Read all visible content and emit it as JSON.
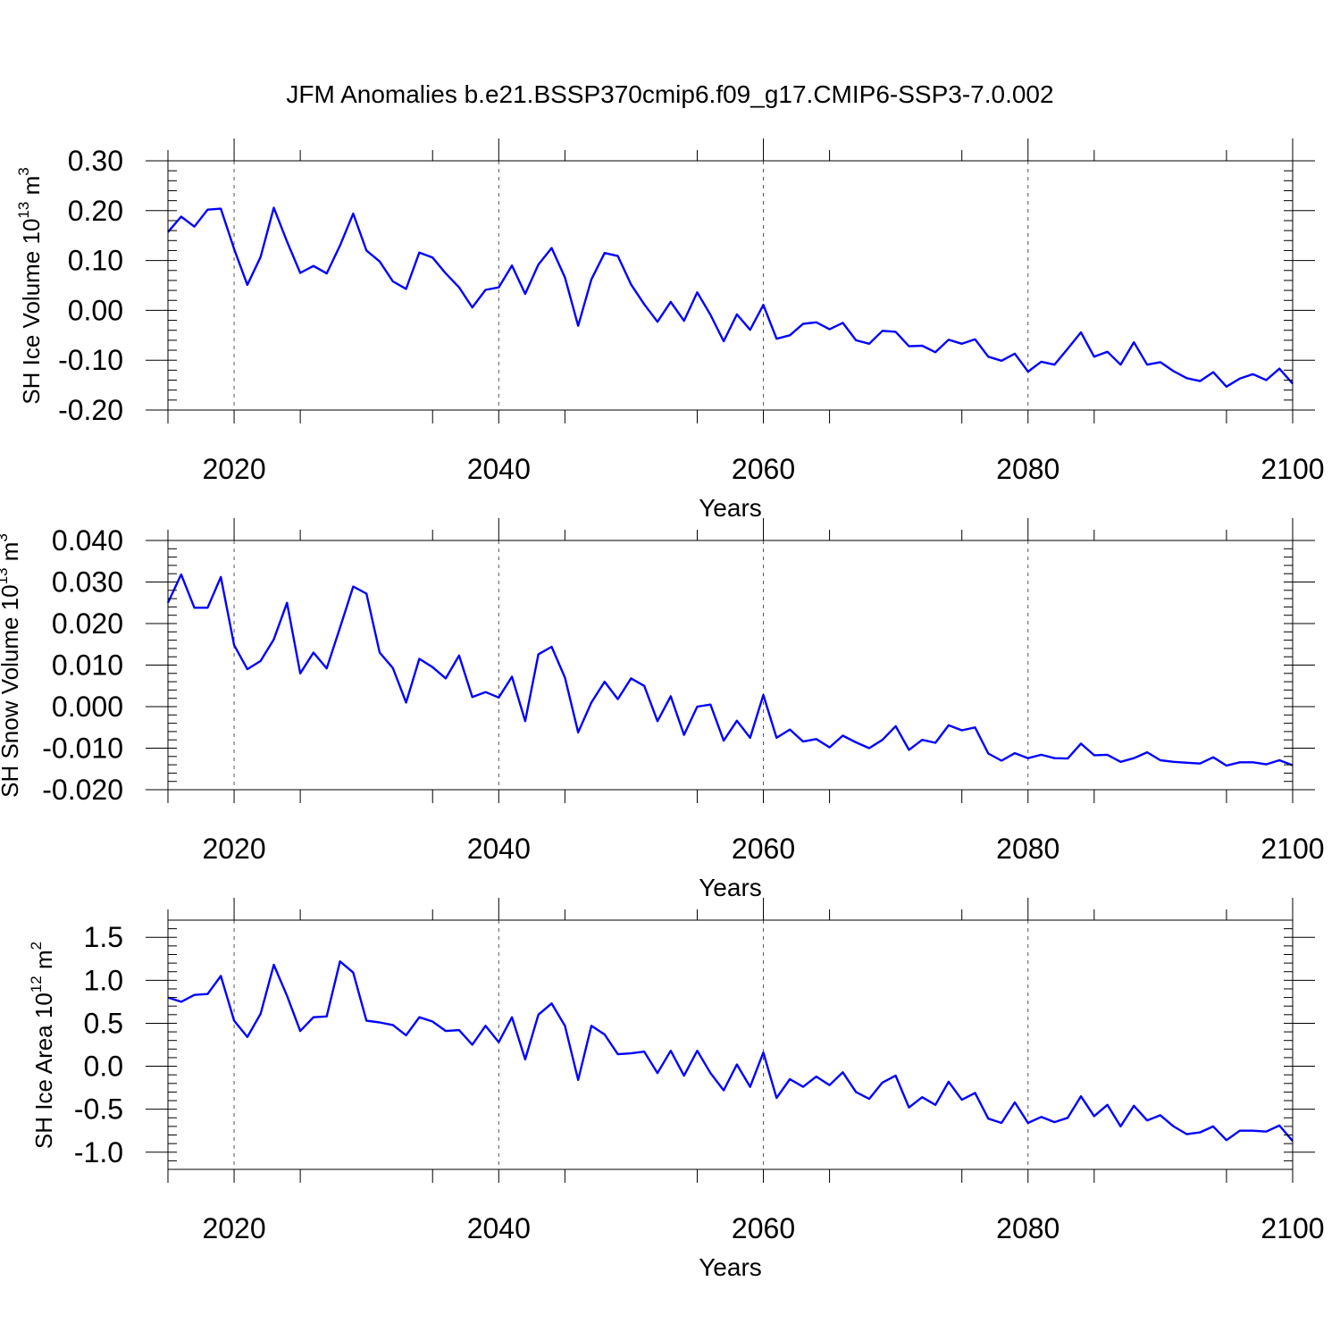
{
  "title": "JFM Anomalies b.e21.BSSP370cmip6.f09_g17.CMIP6-SSP3-7.0.002",
  "colors": {
    "line": "#0000ff",
    "axes": "#000000",
    "grid": "#555555"
  },
  "chart_data": [
    {
      "type": "line",
      "ylabel_main": "SH Ice Volume 10",
      "ylabel_exp1": "13",
      "ylabel_unit": " m",
      "ylabel_exp2": "3",
      "xlabel": "Years",
      "xlim": [
        2015,
        2100
      ],
      "ylim": [
        -0.2,
        0.3
      ],
      "x_ticks": [
        2020,
        2040,
        2060,
        2080,
        2100
      ],
      "x_tick_labels": [
        "2020",
        "2040",
        "2060",
        "2080",
        "2100"
      ],
      "y_ticks": [
        -0.2,
        -0.1,
        0.0,
        0.1,
        0.2,
        0.3
      ],
      "y_tick_labels": [
        "-0.20",
        "-0.10",
        "0.00",
        "0.10",
        "0.20",
        "0.30"
      ],
      "grid_x": [
        2020,
        2040,
        2060,
        2080
      ],
      "x": [
        2015,
        2016,
        2017,
        2018,
        2019,
        2020,
        2021,
        2022,
        2023,
        2024,
        2025,
        2026,
        2027,
        2028,
        2029,
        2030,
        2031,
        2032,
        2033,
        2034,
        2035,
        2036,
        2037,
        2038,
        2039,
        2040,
        2041,
        2042,
        2043,
        2044,
        2045,
        2046,
        2047,
        2048,
        2049,
        2050,
        2051,
        2052,
        2053,
        2054,
        2055,
        2056,
        2057,
        2058,
        2059,
        2060,
        2061,
        2062,
        2063,
        2064,
        2065,
        2066,
        2067,
        2068,
        2069,
        2070,
        2071,
        2072,
        2073,
        2074,
        2075,
        2076,
        2077,
        2078,
        2079,
        2080,
        2081,
        2082,
        2083,
        2084,
        2085,
        2086,
        2087,
        2088,
        2089,
        2090,
        2091,
        2092,
        2093,
        2094,
        2095,
        2096,
        2097,
        2098,
        2099,
        2100
      ],
      "series": [
        {
          "values": [
            0.157,
            0.188,
            0.168,
            0.202,
            0.204,
            0.123,
            0.051,
            0.107,
            0.206,
            0.138,
            0.075,
            0.089,
            0.074,
            0.13,
            0.194,
            0.12,
            0.098,
            0.058,
            0.043,
            0.116,
            0.106,
            0.074,
            0.046,
            0.006,
            0.041,
            0.046,
            0.09,
            0.033,
            0.092,
            0.125,
            0.066,
            -0.031,
            0.062,
            0.115,
            0.109,
            0.052,
            0.012,
            -0.023,
            0.017,
            -0.021,
            0.036,
            -0.009,
            -0.062,
            -0.008,
            -0.039,
            0.011,
            -0.057,
            -0.05,
            -0.027,
            -0.024,
            -0.038,
            -0.025,
            -0.06,
            -0.067,
            -0.041,
            -0.043,
            -0.072,
            -0.071,
            -0.084,
            -0.059,
            -0.067,
            -0.058,
            -0.093,
            -0.101,
            -0.087,
            -0.123,
            -0.103,
            -0.109,
            -0.077,
            -0.044,
            -0.093,
            -0.083,
            -0.109,
            -0.064,
            -0.109,
            -0.104,
            -0.122,
            -0.136,
            -0.142,
            -0.124,
            -0.153,
            -0.137,
            -0.128,
            -0.14,
            -0.117,
            -0.147
          ]
        }
      ]
    },
    {
      "type": "line",
      "ylabel_main": "SH Snow Volume 10",
      "ylabel_exp1": "13",
      "ylabel_unit": " m",
      "ylabel_exp2": "3",
      "xlabel": "Years",
      "xlim": [
        2015,
        2100
      ],
      "ylim": [
        -0.02,
        0.04
      ],
      "x_ticks": [
        2020,
        2040,
        2060,
        2080,
        2100
      ],
      "x_tick_labels": [
        "2020",
        "2040",
        "2060",
        "2080",
        "2100"
      ],
      "y_ticks": [
        -0.02,
        -0.01,
        0.0,
        0.01,
        0.02,
        0.03,
        0.04
      ],
      "y_tick_labels": [
        "-0.020",
        "-0.010",
        "0.000",
        "0.010",
        "0.020",
        "0.030",
        "0.040"
      ],
      "grid_x": [
        2020,
        2040,
        2060,
        2080
      ],
      "x": [
        2015,
        2016,
        2017,
        2018,
        2019,
        2020,
        2021,
        2022,
        2023,
        2024,
        2025,
        2026,
        2027,
        2028,
        2029,
        2030,
        2031,
        2032,
        2033,
        2034,
        2035,
        2036,
        2037,
        2038,
        2039,
        2040,
        2041,
        2042,
        2043,
        2044,
        2045,
        2046,
        2047,
        2048,
        2049,
        2050,
        2051,
        2052,
        2053,
        2054,
        2055,
        2056,
        2057,
        2058,
        2059,
        2060,
        2061,
        2062,
        2063,
        2064,
        2065,
        2066,
        2067,
        2068,
        2069,
        2070,
        2071,
        2072,
        2073,
        2074,
        2075,
        2076,
        2077,
        2078,
        2079,
        2080,
        2081,
        2082,
        2083,
        2084,
        2085,
        2086,
        2087,
        2088,
        2089,
        2090,
        2091,
        2092,
        2093,
        2094,
        2095,
        2096,
        2097,
        2098,
        2099,
        2100
      ],
      "series": [
        {
          "values": [
            0.025,
            0.0318,
            0.0238,
            0.0238,
            0.0312,
            0.0148,
            0.009,
            0.011,
            0.0162,
            0.025,
            0.008,
            0.013,
            0.0092,
            0.019,
            0.0289,
            0.0272,
            0.013,
            0.0093,
            0.001,
            0.0115,
            0.0095,
            0.0068,
            0.0123,
            0.0023,
            0.0035,
            0.0022,
            0.0072,
            -0.0035,
            0.0126,
            0.0144,
            0.007,
            -0.0062,
            0.001,
            0.006,
            0.0018,
            0.0068,
            0.005,
            -0.0035,
            0.0025,
            -0.0068,
            -0.0,
            0.0005,
            -0.0082,
            -0.0034,
            -0.0075,
            0.0028,
            -0.0075,
            -0.0055,
            -0.0084,
            -0.0078,
            -0.0098,
            -0.007,
            -0.0086,
            -0.01,
            -0.008,
            -0.0047,
            -0.0104,
            -0.008,
            -0.0087,
            -0.0045,
            -0.0057,
            -0.005,
            -0.0113,
            -0.013,
            -0.0112,
            -0.0124,
            -0.0116,
            -0.0124,
            -0.0125,
            -0.0089,
            -0.0117,
            -0.0116,
            -0.0133,
            -0.0124,
            -0.011,
            -0.0129,
            -0.0133,
            -0.0135,
            -0.0137,
            -0.0122,
            -0.0142,
            -0.0134,
            -0.0134,
            -0.0139,
            -0.0129,
            -0.0141
          ]
        }
      ]
    },
    {
      "type": "line",
      "ylabel_main": "SH Ice Area 10",
      "ylabel_exp1": "12",
      "ylabel_unit": " m",
      "ylabel_exp2": "2",
      "xlabel": "Years",
      "xlim": [
        2015,
        2100
      ],
      "ylim": [
        -1.2,
        1.7
      ],
      "x_ticks": [
        2020,
        2040,
        2060,
        2080,
        2100
      ],
      "x_tick_labels": [
        "2020",
        "2040",
        "2060",
        "2080",
        "2100"
      ],
      "y_ticks": [
        -1.0,
        -0.5,
        0.0,
        0.5,
        1.0,
        1.5
      ],
      "y_tick_labels": [
        "-1.0",
        "-0.5",
        "0.0",
        "0.5",
        "1.0",
        "1.5"
      ],
      "grid_x": [
        2020,
        2040,
        2060,
        2080
      ],
      "x": [
        2015,
        2016,
        2017,
        2018,
        2019,
        2020,
        2021,
        2022,
        2023,
        2024,
        2025,
        2026,
        2027,
        2028,
        2029,
        2030,
        2031,
        2032,
        2033,
        2034,
        2035,
        2036,
        2037,
        2038,
        2039,
        2040,
        2041,
        2042,
        2043,
        2044,
        2045,
        2046,
        2047,
        2048,
        2049,
        2050,
        2051,
        2052,
        2053,
        2054,
        2055,
        2056,
        2057,
        2058,
        2059,
        2060,
        2061,
        2062,
        2063,
        2064,
        2065,
        2066,
        2067,
        2068,
        2069,
        2070,
        2071,
        2072,
        2073,
        2074,
        2075,
        2076,
        2077,
        2078,
        2079,
        2080,
        2081,
        2082,
        2083,
        2084,
        2085,
        2086,
        2087,
        2088,
        2089,
        2090,
        2091,
        2092,
        2093,
        2094,
        2095,
        2096,
        2097,
        2098,
        2099,
        2100
      ],
      "series": [
        {
          "values": [
            0.8,
            0.75,
            0.83,
            0.84,
            1.05,
            0.53,
            0.34,
            0.61,
            1.18,
            0.82,
            0.41,
            0.57,
            0.58,
            1.22,
            1.09,
            0.53,
            0.51,
            0.48,
            0.36,
            0.57,
            0.52,
            0.41,
            0.42,
            0.25,
            0.47,
            0.28,
            0.57,
            0.08,
            0.6,
            0.73,
            0.47,
            -0.16,
            0.47,
            0.37,
            0.14,
            0.15,
            0.17,
            -0.08,
            0.18,
            -0.11,
            0.18,
            -0.08,
            -0.28,
            0.02,
            -0.24,
            0.16,
            -0.37,
            -0.15,
            -0.24,
            -0.12,
            -0.22,
            -0.07,
            -0.3,
            -0.38,
            -0.19,
            -0.11,
            -0.48,
            -0.36,
            -0.45,
            -0.18,
            -0.39,
            -0.31,
            -0.61,
            -0.66,
            -0.42,
            -0.66,
            -0.59,
            -0.65,
            -0.6,
            -0.35,
            -0.58,
            -0.45,
            -0.7,
            -0.46,
            -0.63,
            -0.57,
            -0.7,
            -0.79,
            -0.77,
            -0.7,
            -0.86,
            -0.75,
            -0.75,
            -0.76,
            -0.69,
            -0.87
          ]
        }
      ]
    }
  ]
}
